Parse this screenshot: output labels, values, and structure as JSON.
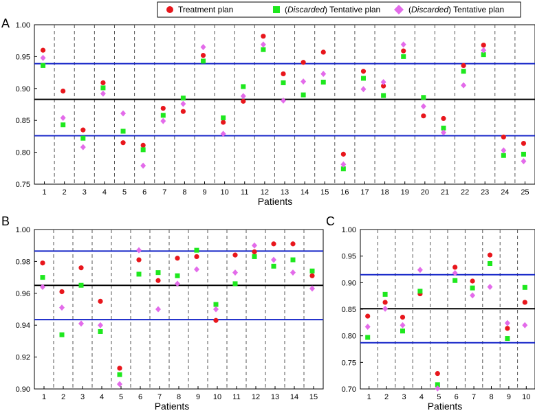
{
  "legend": {
    "items": [
      {
        "key": "treatment",
        "label": "Treatment plan",
        "marker": "circle",
        "color": "#e8161c"
      },
      {
        "key": "tent1",
        "prefix": "(",
        "emph": "Discarded",
        "suffix": ") Tentative plan",
        "marker": "square",
        "color": "#1ee81e"
      },
      {
        "key": "tent2",
        "prefix": "(",
        "emph": "Discarded",
        "suffix": ") Tentative plan",
        "marker": "diamond",
        "color": "#e36bea"
      }
    ]
  },
  "colors": {
    "mean_line": "#000000",
    "band_line": "#1424c8",
    "divider": "#555555"
  },
  "chart_data": [
    {
      "panel_label": "A",
      "type": "scatter",
      "xlabel": "Patients",
      "ylim": [
        0.75,
        1.0
      ],
      "yticks": [
        "0.75",
        "0.80",
        "0.85",
        "0.90",
        "0.95",
        "1.00"
      ],
      "ytick_values": [
        0.75,
        0.8,
        0.85,
        0.9,
        0.95,
        1.0
      ],
      "categories": [
        "1",
        "2",
        "3",
        "4",
        "5",
        "6",
        "7",
        "8",
        "9",
        "10",
        "11",
        "12",
        "13",
        "14",
        "15",
        "16",
        "17",
        "18",
        "19",
        "20",
        "21",
        "22",
        "23",
        "24",
        "25"
      ],
      "hlines": {
        "mean": 0.883,
        "upper": 0.939,
        "lower": 0.826
      },
      "series": [
        {
          "name": "Treatment plan",
          "key": "treatment",
          "values": [
            0.96,
            0.896,
            0.835,
            0.909,
            0.815,
            0.811,
            0.869,
            0.864,
            0.952,
            0.847,
            0.88,
            0.982,
            0.923,
            0.941,
            0.957,
            0.797,
            0.927,
            0.904,
            0.959,
            0.857,
            0.853,
            0.936,
            0.968,
            0.824,
            0.814
          ]
        },
        {
          "name": "(Discarded) Tentative plan",
          "key": "tent1",
          "values": [
            0.936,
            0.843,
            0.822,
            0.901,
            0.833,
            0.804,
            0.858,
            0.885,
            0.943,
            0.854,
            0.903,
            0.961,
            0.909,
            0.89,
            0.91,
            0.774,
            0.916,
            0.889,
            0.95,
            0.886,
            0.838,
            0.927,
            0.953,
            0.795,
            0.797
          ]
        },
        {
          "name": "(Discarded) Tentative plan",
          "key": "tent2",
          "values": [
            0.948,
            0.854,
            0.808,
            0.892,
            0.861,
            0.779,
            0.849,
            0.876,
            0.965,
            0.829,
            0.888,
            0.969,
            0.881,
            0.911,
            0.923,
            0.781,
            0.899,
            0.91,
            0.969,
            0.872,
            0.831,
            0.905,
            0.96,
            0.803,
            0.786
          ]
        }
      ]
    },
    {
      "panel_label": "B",
      "type": "scatter",
      "xlabel": "Patients",
      "ylim": [
        0.9,
        1.0
      ],
      "yticks": [
        "0.90",
        "0.92",
        "0.94",
        "0.96",
        "0.98",
        "1.00"
      ],
      "ytick_values": [
        0.9,
        0.92,
        0.94,
        0.96,
        0.98,
        1.0
      ],
      "categories": [
        "1",
        "2",
        "3",
        "4",
        "5",
        "6",
        "7",
        "8",
        "9",
        "10",
        "11",
        "12",
        "13",
        "14",
        "15"
      ],
      "hlines": {
        "mean": 0.965,
        "upper": 0.9865,
        "lower": 0.9435
      },
      "series": [
        {
          "name": "Treatment plan",
          "key": "treatment",
          "values": [
            0.979,
            0.961,
            0.976,
            0.955,
            0.913,
            0.981,
            0.968,
            0.982,
            0.983,
            0.943,
            0.984,
            0.986,
            0.991,
            0.991,
            0.971
          ]
        },
        {
          "name": "(Discarded) Tentative plan",
          "key": "tent1",
          "values": [
            0.97,
            0.934,
            0.965,
            0.936,
            0.909,
            0.972,
            0.973,
            0.971,
            0.987,
            0.953,
            0.966,
            0.983,
            0.977,
            0.981,
            0.974
          ]
        },
        {
          "name": "(Discarded) Tentative plan",
          "key": "tent2",
          "values": [
            0.964,
            0.951,
            0.941,
            0.94,
            0.903,
            0.987,
            0.95,
            0.966,
            0.975,
            0.95,
            0.973,
            0.99,
            0.981,
            0.973,
            0.963
          ]
        }
      ]
    },
    {
      "panel_label": "C",
      "type": "scatter",
      "xlabel": "Patients",
      "ylim": [
        0.7,
        1.0
      ],
      "yticks": [
        "0.70",
        "0.75",
        "0.80",
        "0.85",
        "0.90",
        "0.95",
        "1.00"
      ],
      "ytick_values": [
        0.7,
        0.75,
        0.8,
        0.85,
        0.9,
        0.95,
        1.0
      ],
      "categories": [
        "1",
        "2",
        "3",
        "4",
        "5",
        "6",
        "7",
        "8",
        "9",
        "10"
      ],
      "hlines": {
        "mean": 0.851,
        "upper": 0.915,
        "lower": 0.787
      },
      "series": [
        {
          "name": "Treatment plan",
          "key": "treatment",
          "values": [
            0.837,
            0.863,
            0.835,
            0.879,
            0.729,
            0.929,
            0.903,
            0.952,
            0.814,
            0.863
          ]
        },
        {
          "name": "(Discarded) Tentative plan",
          "key": "tent1",
          "values": [
            0.797,
            0.878,
            0.809,
            0.884,
            0.708,
            0.904,
            0.89,
            0.936,
            0.795,
            0.891
          ]
        },
        {
          "name": "(Discarded) Tentative plan",
          "key": "tent2",
          "values": [
            0.817,
            0.851,
            0.82,
            0.924,
            0.701,
            0.918,
            0.876,
            0.892,
            0.824,
            0.82
          ]
        }
      ]
    }
  ]
}
